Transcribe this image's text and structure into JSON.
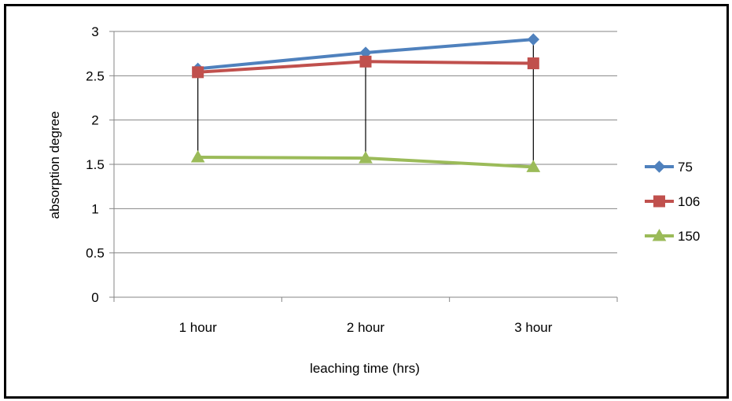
{
  "chart_data": {
    "type": "line",
    "title": "",
    "xlabel": "leaching time (hrs)",
    "ylabel": "absorption degree",
    "categories": [
      "1 hour",
      "2 hour",
      "3 hour"
    ],
    "ylim": [
      0,
      3
    ],
    "yticks": [
      "0",
      "0.5",
      "1",
      "1.5",
      "2",
      "2.5",
      "3"
    ],
    "grid": true,
    "legend_position": "right",
    "drop_lines": true,
    "series": [
      {
        "name": "75",
        "values": [
          2.58,
          2.76,
          2.91
        ],
        "color": "#4F81BD",
        "marker": "diamond"
      },
      {
        "name": "106",
        "values": [
          2.54,
          2.66,
          2.64
        ],
        "color": "#C0504D",
        "marker": "square"
      },
      {
        "name": "150",
        "values": [
          1.58,
          1.57,
          1.47
        ],
        "color": "#9BBB59",
        "marker": "triangle"
      }
    ]
  }
}
